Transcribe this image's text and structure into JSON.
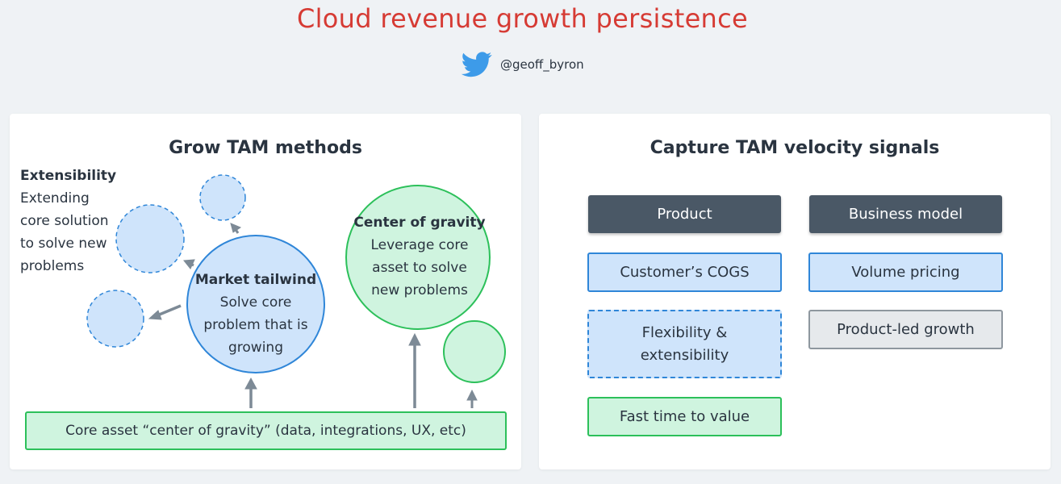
{
  "header": {
    "title": "Cloud revenue growth persistence",
    "handle": "@geoff_byron"
  },
  "colors": {
    "title": "#d63b34",
    "blue_border": "#2f86d8",
    "blue_fill": "#cfe4fb",
    "green_border": "#2cc05a",
    "green_fill": "#cff4df",
    "dark_header": "#4a5866",
    "arrow": "#7d8a96"
  },
  "left_panel": {
    "title": "Grow TAM methods",
    "extensibility": {
      "heading": "Extensibility",
      "lines": [
        "Extending",
        "core solution",
        "to solve new",
        "problems"
      ]
    },
    "market_tailwind": {
      "heading": "Market tailwind",
      "lines": [
        "Solve core",
        "problem that is",
        "growing"
      ]
    },
    "center_of_gravity": {
      "heading": "Center of gravity",
      "lines": [
        "Leverage core",
        "asset to solve",
        "new problems"
      ]
    },
    "core_asset": "Core asset “center of gravity” (data, integrations, UX, etc)"
  },
  "right_panel": {
    "title": "Capture TAM velocity signals",
    "product_header": "Product",
    "business_header": "Business model",
    "product_items": [
      "Customer’s COGS",
      "Flexibility &",
      "extensibility",
      "Fast time to value"
    ],
    "business_items": [
      "Volume pricing",
      "Product-led growth"
    ]
  },
  "icons": {
    "twitter": "twitter-bird-icon"
  }
}
